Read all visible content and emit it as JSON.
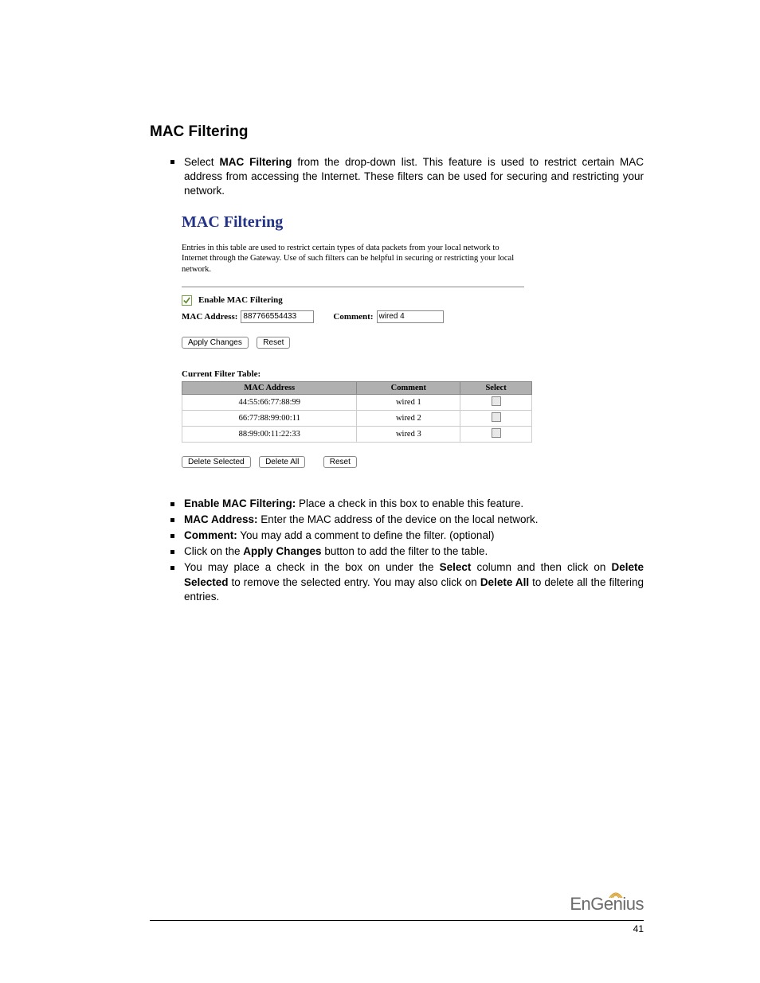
{
  "heading": "MAC Filtering",
  "intro": {
    "prefix": "Select ",
    "bold": "MAC Filtering",
    "rest": " from the drop-down list. This feature is used to restrict certain MAC address from accessing the Internet. These filters can be used for securing and restricting your network."
  },
  "ui": {
    "title": "MAC Filtering",
    "description": "Entries in this table are used to restrict certain types of data packets from your local network to Internet through the Gateway. Use of such filters can be helpful in securing or restricting your local network.",
    "enable_label": "Enable MAC Filtering",
    "enable_checked": true,
    "mac_label": "MAC Address:",
    "mac_value": "887766554433",
    "comment_label": "Comment:",
    "comment_value": "wired 4",
    "apply_btn": "Apply Changes",
    "reset_btn": "Reset",
    "table_title": "Current Filter Table:",
    "columns": [
      "MAC Address",
      "Comment",
      "Select"
    ],
    "col_widths": [
      "220px",
      "130px",
      "90px"
    ],
    "rows": [
      {
        "mac": "44:55:66:77:88:99",
        "comment": "wired 1"
      },
      {
        "mac": "66:77:88:99:00:11",
        "comment": "wired 2"
      },
      {
        "mac": "88:99:00:11:22:33",
        "comment": "wired 3"
      }
    ],
    "delete_selected_btn": "Delete Selected",
    "delete_all_btn": "Delete All",
    "reset2_btn": "Reset",
    "header_bg": "#b0b0b0"
  },
  "descriptions": [
    {
      "bold": "Enable MAC Filtering:",
      "rest": " Place a check in this box to enable this feature."
    },
    {
      "bold": "MAC Address:",
      "rest": " Enter the MAC address of the device on the local network."
    },
    {
      "bold": "Comment:",
      "rest": " You may add a comment to define the filter. (optional)"
    },
    {
      "plain_pre": "Click on the ",
      "bold": "Apply Changes",
      "rest": " button to add the filter to the table."
    },
    {
      "html": "You may place a check in the box on under the <b>Select</b> column and then click on <b>Delete Selected</b> to remove the selected entry. You may also click on <b>Delete All</b> to delete all the filtering entries."
    }
  ],
  "logo": {
    "text": "EnGenius",
    "color": "#6a6a6a",
    "arc_color": "#d8a030"
  },
  "page_number": "41"
}
